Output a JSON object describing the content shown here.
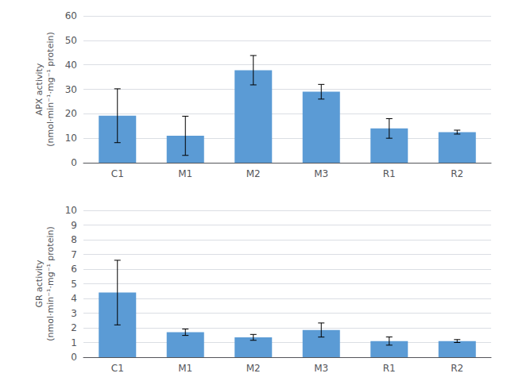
{
  "chart_data": [
    {
      "type": "bar",
      "categories": [
        "C1",
        "M1",
        "M2",
        "M3",
        "R1",
        "R2"
      ],
      "values": [
        19.2,
        11.0,
        37.8,
        29.0,
        14.0,
        12.5
      ],
      "errors": [
        11.0,
        8.0,
        6.0,
        3.0,
        4.0,
        0.8
      ],
      "color": "#5B9BD5",
      "ylabel": "APX activity\n(nmol·min⁻¹·mg⁻¹ protein)",
      "ylim": [
        0,
        60
      ],
      "yticks": [
        0,
        10,
        20,
        30,
        40,
        50,
        60
      ],
      "grid": true
    },
    {
      "type": "bar",
      "categories": [
        "C1",
        "M1",
        "M2",
        "M3",
        "R1",
        "R2"
      ],
      "values": [
        4.4,
        1.7,
        1.35,
        1.85,
        1.1,
        1.1
      ],
      "errors": [
        2.2,
        0.22,
        0.2,
        0.48,
        0.28,
        0.1
      ],
      "color": "#5B9BD5",
      "ylabel": "GR activity\n(nmol·min⁻¹·mg⁻¹ protein)",
      "ylim": [
        0,
        10
      ],
      "yticks": [
        0,
        1,
        2,
        3,
        4,
        5,
        6,
        7,
        8,
        9,
        10
      ],
      "grid": true
    }
  ]
}
